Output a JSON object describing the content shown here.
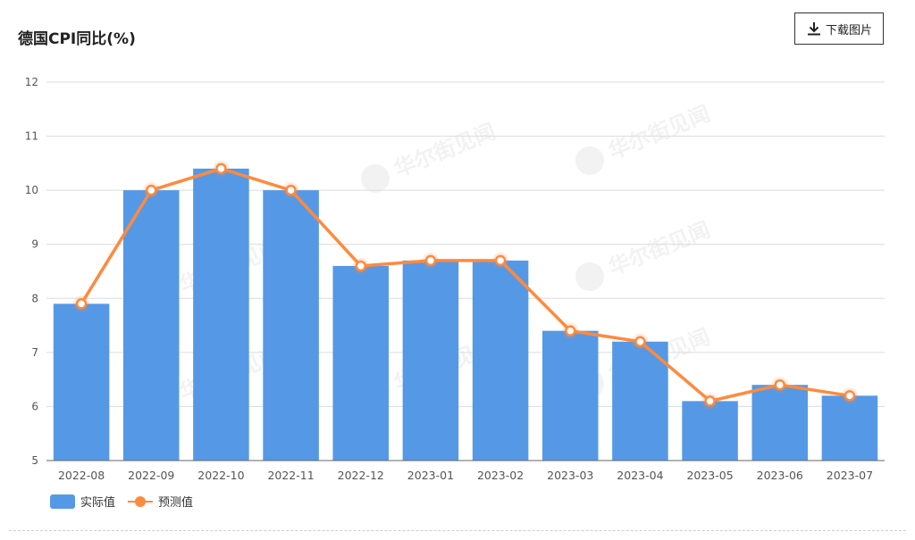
{
  "title": "德国CPI同比(%)",
  "download_label": "下载图片",
  "watermark_text": "华尔街见闻",
  "colors": {
    "bar": "#5599e6",
    "line": "#ff8a3d",
    "grid": "#dcdcdc",
    "axis": "#555555"
  },
  "legend": {
    "actual": "实际值",
    "forecast": "预测值"
  },
  "chart_data": {
    "type": "bar",
    "title": "德国CPI同比(%)",
    "categories": [
      "2022-08",
      "2022-09",
      "2022-10",
      "2022-11",
      "2022-12",
      "2023-01",
      "2023-02",
      "2023-03",
      "2023-04",
      "2023-05",
      "2023-06",
      "2023-07"
    ],
    "series": [
      {
        "name": "实际值",
        "type": "bar",
        "values": [
          7.9,
          10.0,
          10.4,
          10.0,
          8.6,
          8.7,
          8.7,
          7.4,
          7.2,
          6.1,
          6.4,
          6.2
        ]
      },
      {
        "name": "预测值",
        "type": "line",
        "values": [
          7.9,
          10.0,
          10.4,
          10.0,
          8.6,
          8.7,
          8.7,
          7.4,
          7.2,
          6.1,
          6.4,
          6.2
        ]
      }
    ],
    "ylim": [
      5,
      12
    ],
    "yticks": [
      5,
      6,
      7,
      8,
      9,
      10,
      11,
      12
    ],
    "grid": true,
    "legend_position": "bottom-left"
  }
}
